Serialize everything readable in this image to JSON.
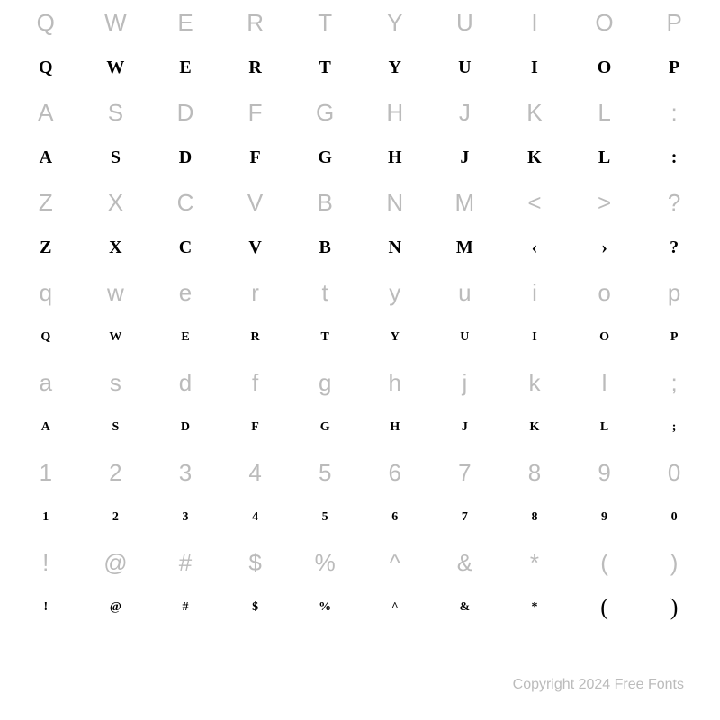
{
  "chart": {
    "type": "font-specimen-grid",
    "columns": 10,
    "background_color": "#ffffff",
    "ref_color": "#bbbbbb",
    "sample_color": "#000000",
    "ref_fontsize": 26,
    "sample_fontsize_large": 20,
    "sample_fontsize_small": 14,
    "rows": [
      {
        "ref": [
          "Q",
          "W",
          "E",
          "R",
          "T",
          "Y",
          "U",
          "I",
          "O",
          "P"
        ],
        "sample": [
          "Q",
          "W",
          "E",
          "R",
          "T",
          "Y",
          "U",
          "I",
          "O",
          "P"
        ],
        "size": "large"
      },
      {
        "ref": [
          "A",
          "S",
          "D",
          "F",
          "G",
          "H",
          "J",
          "K",
          "L",
          ":"
        ],
        "sample": [
          "A",
          "S",
          "D",
          "F",
          "G",
          "H",
          "J",
          "K",
          "L",
          ":"
        ],
        "size": "large"
      },
      {
        "ref": [
          "Z",
          "X",
          "C",
          "V",
          "B",
          "N",
          "M",
          "<",
          ">",
          "?"
        ],
        "sample": [
          "Z",
          "X",
          "C",
          "V",
          "B",
          "N",
          "M",
          "‹",
          "›",
          "?"
        ],
        "size": "large"
      },
      {
        "ref": [
          "q",
          "w",
          "e",
          "r",
          "t",
          "y",
          "u",
          "i",
          "o",
          "p"
        ],
        "sample": [
          "Q",
          "W",
          "E",
          "R",
          "T",
          "Y",
          "U",
          "I",
          "O",
          "P"
        ],
        "size": "small"
      },
      {
        "ref": [
          "a",
          "s",
          "d",
          "f",
          "g",
          "h",
          "j",
          "k",
          "l",
          ";"
        ],
        "sample": [
          "A",
          "S",
          "D",
          "F",
          "G",
          "H",
          "J",
          "K",
          "L",
          ";"
        ],
        "size": "small"
      },
      {
        "ref": [
          "1",
          "2",
          "3",
          "4",
          "5",
          "6",
          "7",
          "8",
          "9",
          "0"
        ],
        "sample": [
          "1",
          "2",
          "3",
          "4",
          "5",
          "6",
          "7",
          "8",
          "9",
          "0"
        ],
        "size": "small"
      },
      {
        "ref": [
          "!",
          "@",
          "#",
          "$",
          "%",
          "^",
          "&",
          "*",
          "(",
          ")"
        ],
        "sample": [
          "!",
          "@",
          "#",
          "$",
          "%",
          "^",
          "&",
          "*",
          "(",
          ")"
        ],
        "size": "small",
        "paren_indices": [
          8,
          9
        ]
      }
    ]
  },
  "footer": {
    "copyright": "Copyright 2024 Free Fonts"
  }
}
